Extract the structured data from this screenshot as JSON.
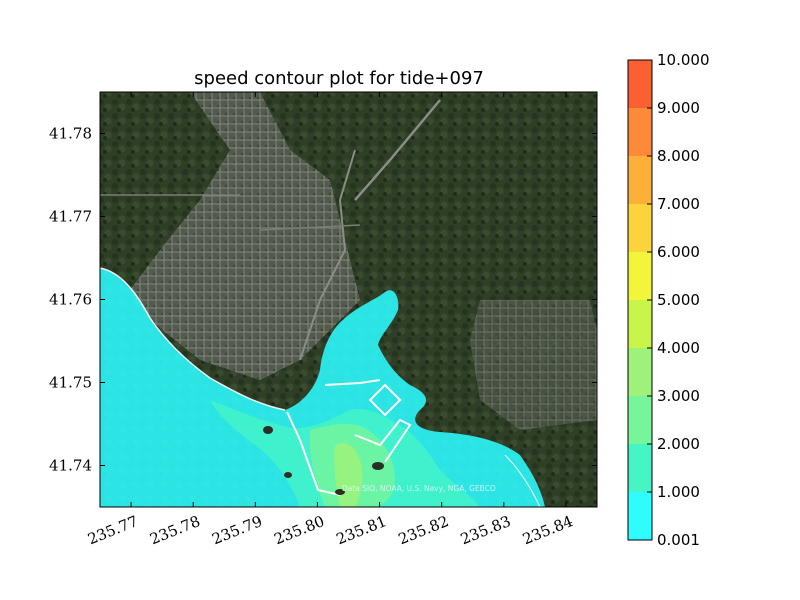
{
  "chart_data": {
    "type": "heatmap",
    "title": "speed contour plot for tide+097",
    "xlabel": "",
    "ylabel": "",
    "xlim": [
      235.765,
      235.845
    ],
    "ylim": [
      41.735,
      41.785
    ],
    "x_ticks": [
      "235.77",
      "235.78",
      "235.79",
      "235.80",
      "235.81",
      "235.82",
      "235.83",
      "235.84"
    ],
    "x_tick_values": [
      235.77,
      235.78,
      235.79,
      235.8,
      235.81,
      235.82,
      235.83,
      235.84
    ],
    "y_ticks": [
      "41.74",
      "41.75",
      "41.76",
      "41.77",
      "41.78"
    ],
    "y_tick_values": [
      41.74,
      41.75,
      41.76,
      41.77,
      41.78
    ],
    "attribution": "Data SIO, NOAA, U.S. Navy, NGA, GEBCO",
    "colorbar": {
      "levels": [
        0.001,
        1.0,
        2.0,
        3.0,
        4.0,
        5.0,
        6.0,
        7.0,
        8.0,
        9.0,
        10.0
      ],
      "labels": [
        "0.001",
        "1.000",
        "2.000",
        "3.000",
        "4.000",
        "5.000",
        "6.000",
        "7.000",
        "8.000",
        "9.000",
        "10.000"
      ],
      "colors": [
        "#2efcff",
        "#45f5c4",
        "#77f59a",
        "#9ef27a",
        "#c9f54a",
        "#f2f53a",
        "#fad43a",
        "#fcb03a",
        "#fc8a38",
        "#fb6033",
        "#fb2e2e"
      ]
    }
  }
}
